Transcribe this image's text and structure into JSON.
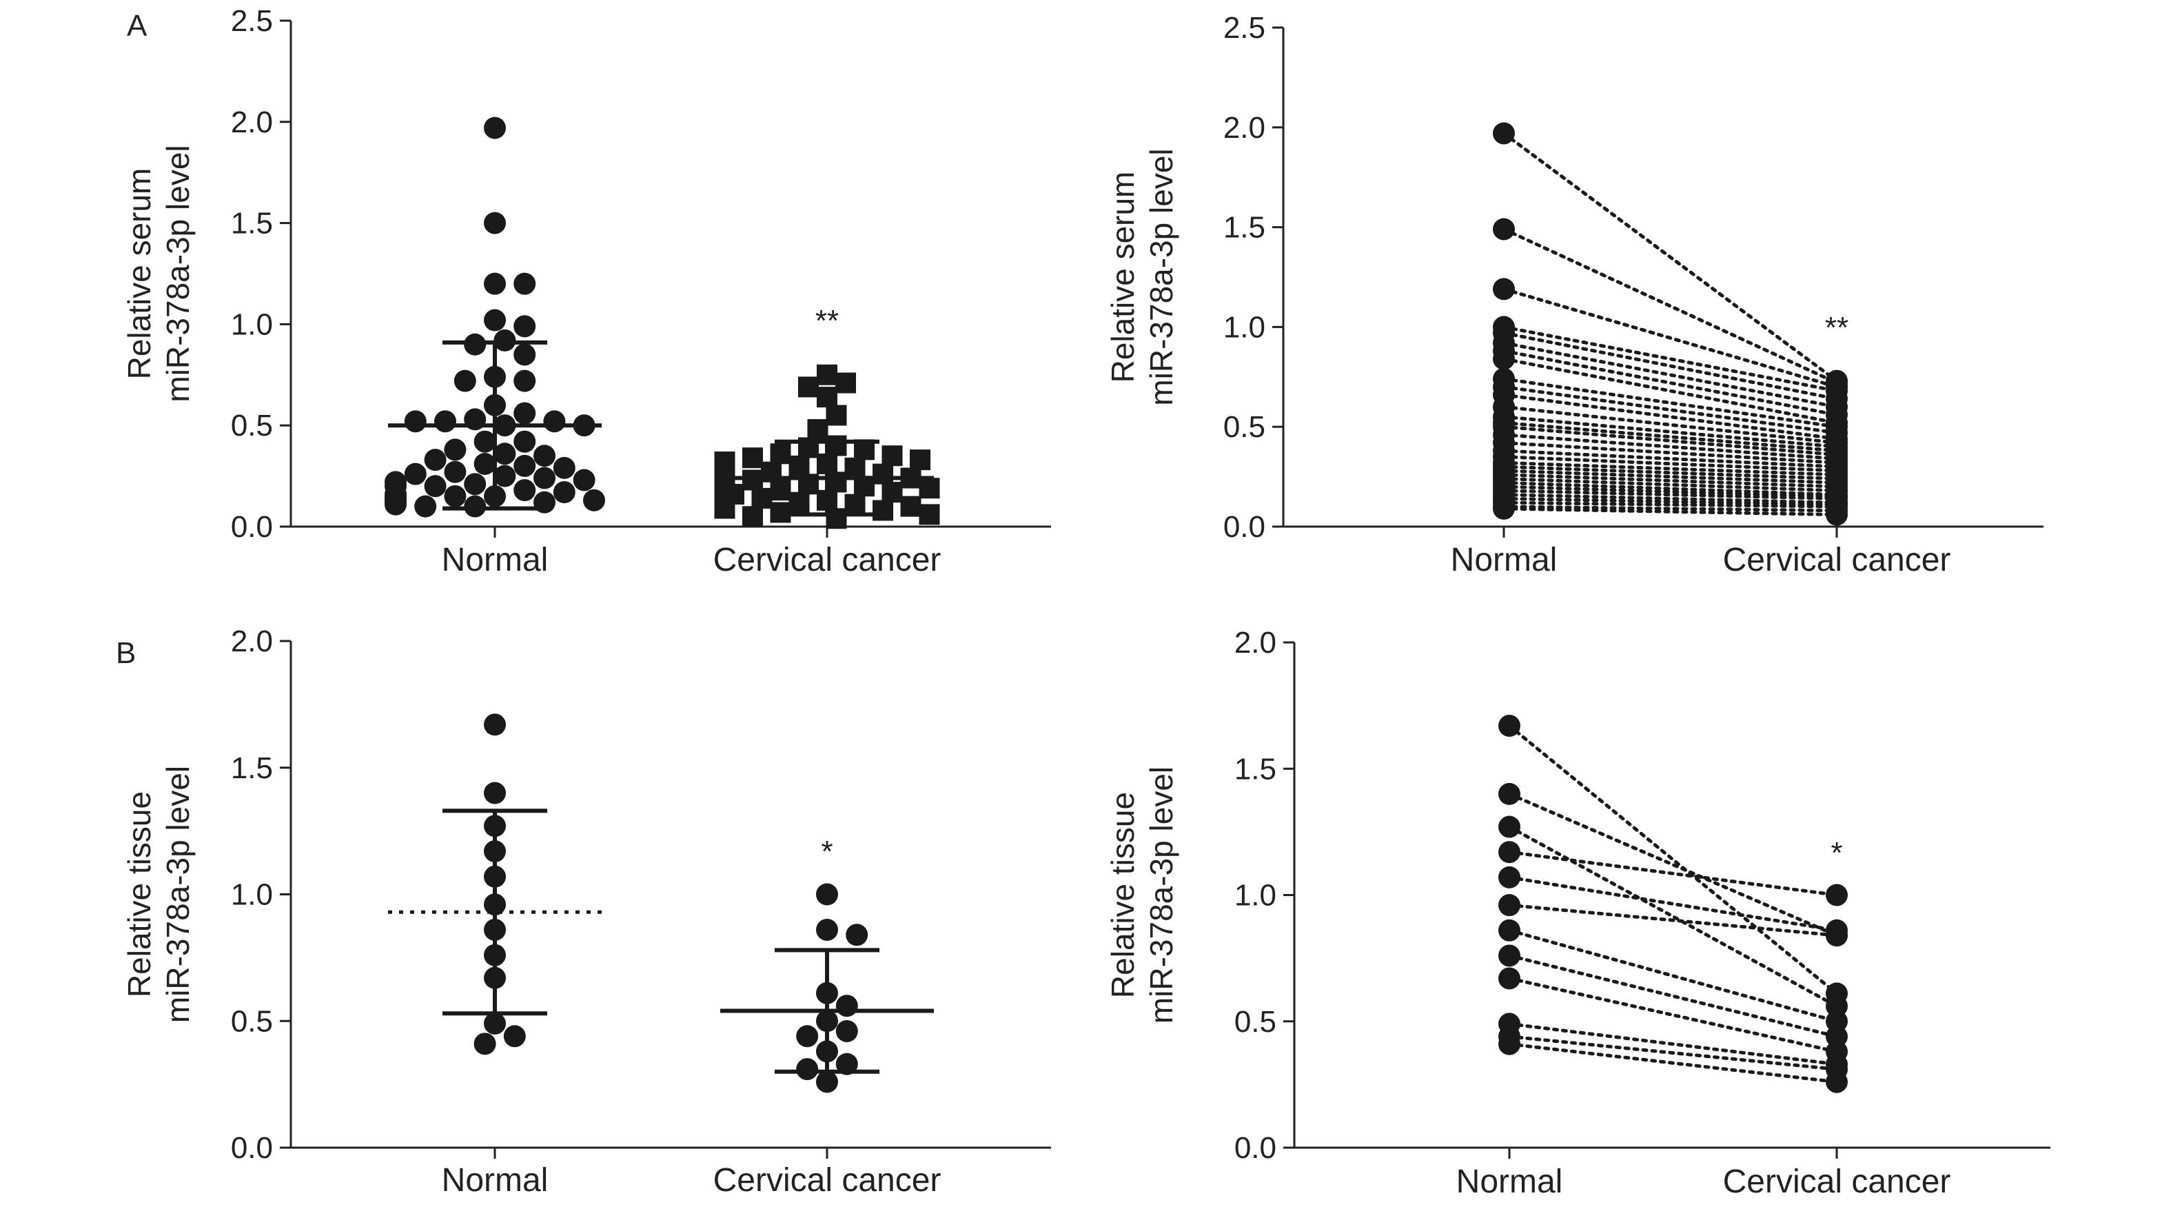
{
  "figure": {
    "panel_labels": [
      "A",
      "B"
    ]
  },
  "chart_data": [
    {
      "id": "A-left",
      "type": "scatter",
      "panel": "A",
      "ylabel_lines": [
        "Relative serum",
        "miR-378a-3p level"
      ],
      "ylim": [
        0,
        2.5
      ],
      "yticks": [
        "0.0",
        "0.5",
        "1.0",
        "1.5",
        "2.0",
        "2.5"
      ],
      "categories": [
        "Normal",
        "Cervical cancer"
      ],
      "markers": [
        "circle",
        "square"
      ],
      "significance": "**",
      "groups": [
        {
          "name": "Normal",
          "mean": 0.5,
          "sd_lower": 0.09,
          "sd_upper": 0.91,
          "mean_line": "solid",
          "values": [
            1.97,
            1.5,
            1.2,
            1.2,
            1.02,
            0.99,
            0.92,
            0.9,
            0.85,
            0.74,
            0.72,
            0.72,
            0.6,
            0.56,
            0.53,
            0.52,
            0.52,
            0.52,
            0.5,
            0.5,
            0.42,
            0.42,
            0.38,
            0.36,
            0.35,
            0.33,
            0.31,
            0.3,
            0.29,
            0.27,
            0.26,
            0.25,
            0.24,
            0.23,
            0.22,
            0.21,
            0.2,
            0.2,
            0.18,
            0.17,
            0.16,
            0.15,
            0.15,
            0.14,
            0.14,
            0.13,
            0.13,
            0.12,
            0.12,
            0.11,
            0.1,
            0.1
          ]
        },
        {
          "name": "Cervical cancer",
          "mean": 0.24,
          "sd_lower": 0.06,
          "sd_upper": 0.42,
          "mean_line": "solid",
          "values": [
            0.75,
            0.71,
            0.69,
            0.64,
            0.55,
            0.48,
            0.4,
            0.39,
            0.38,
            0.36,
            0.35,
            0.34,
            0.33,
            0.32,
            0.31,
            0.3,
            0.29,
            0.28,
            0.27,
            0.26,
            0.25,
            0.24,
            0.23,
            0.22,
            0.21,
            0.2,
            0.19,
            0.18,
            0.17,
            0.16,
            0.15,
            0.14,
            0.13,
            0.12,
            0.11,
            0.1,
            0.09,
            0.08,
            0.07,
            0.06,
            0.05,
            0.04
          ]
        }
      ]
    },
    {
      "id": "A-right",
      "type": "line",
      "panel": "A",
      "ylabel_lines": [
        "Relative serum",
        "miR-378a-3p level"
      ],
      "ylim": [
        0,
        2.5
      ],
      "yticks": [
        "0.0",
        "0.5",
        "1.0",
        "1.5",
        "2.0",
        "2.5"
      ],
      "categories": [
        "Normal",
        "Cervical cancer"
      ],
      "significance": "**",
      "pairs": [
        [
          1.97,
          0.73
        ],
        [
          1.49,
          0.72
        ],
        [
          1.19,
          0.7
        ],
        [
          1.0,
          0.68
        ],
        [
          0.97,
          0.64
        ],
        [
          0.92,
          0.6
        ],
        [
          0.88,
          0.56
        ],
        [
          0.84,
          0.52
        ],
        [
          0.74,
          0.5
        ],
        [
          0.7,
          0.47
        ],
        [
          0.66,
          0.44
        ],
        [
          0.6,
          0.42
        ],
        [
          0.55,
          0.4
        ],
        [
          0.52,
          0.38
        ],
        [
          0.5,
          0.36
        ],
        [
          0.46,
          0.34
        ],
        [
          0.42,
          0.32
        ],
        [
          0.38,
          0.3
        ],
        [
          0.35,
          0.28
        ],
        [
          0.32,
          0.26
        ],
        [
          0.3,
          0.24
        ],
        [
          0.28,
          0.22
        ],
        [
          0.26,
          0.2
        ],
        [
          0.24,
          0.18
        ],
        [
          0.22,
          0.16
        ],
        [
          0.2,
          0.15
        ],
        [
          0.18,
          0.14
        ],
        [
          0.16,
          0.12
        ],
        [
          0.14,
          0.11
        ],
        [
          0.12,
          0.1
        ],
        [
          0.1,
          0.08
        ],
        [
          0.09,
          0.06
        ]
      ]
    },
    {
      "id": "B-left",
      "type": "scatter",
      "panel": "B",
      "ylabel_lines": [
        "Relative tissue",
        "miR-378a-3p level"
      ],
      "ylim": [
        0,
        2.0
      ],
      "yticks": [
        "0.0",
        "0.5",
        "1.0",
        "1.5",
        "2.0"
      ],
      "categories": [
        "Normal",
        "Cervical cancer"
      ],
      "markers": [
        "circle",
        "circle"
      ],
      "significance": "*",
      "groups": [
        {
          "name": "Normal",
          "mean": 0.93,
          "sd_lower": 0.53,
          "sd_upper": 1.33,
          "mean_line": "dotted",
          "values": [
            1.67,
            1.4,
            1.27,
            1.17,
            1.07,
            0.96,
            0.86,
            0.76,
            0.67,
            0.49,
            0.44,
            0.41
          ]
        },
        {
          "name": "Cervical cancer",
          "mean": 0.54,
          "sd_lower": 0.3,
          "sd_upper": 0.78,
          "mean_line": "solid",
          "values": [
            1.0,
            0.86,
            0.84,
            0.61,
            0.56,
            0.5,
            0.46,
            0.44,
            0.38,
            0.33,
            0.31,
            0.26
          ]
        }
      ]
    },
    {
      "id": "B-right",
      "type": "line",
      "panel": "B",
      "ylabel_lines": [
        "Relative tissue",
        "miR-378a-3p level"
      ],
      "ylim": [
        0,
        2.0
      ],
      "yticks": [
        "0.0",
        "0.5",
        "1.0",
        "1.5",
        "2.0"
      ],
      "categories": [
        "Normal",
        "Cervical cancer"
      ],
      "significance": "*",
      "pairs": [
        [
          1.67,
          0.61
        ],
        [
          1.4,
          0.84
        ],
        [
          1.27,
          0.56
        ],
        [
          1.17,
          1.0
        ],
        [
          1.07,
          0.86
        ],
        [
          0.96,
          0.84
        ],
        [
          0.86,
          0.5
        ],
        [
          0.76,
          0.44
        ],
        [
          0.67,
          0.38
        ],
        [
          0.49,
          0.33
        ],
        [
          0.44,
          0.31
        ],
        [
          0.41,
          0.26
        ]
      ]
    }
  ]
}
